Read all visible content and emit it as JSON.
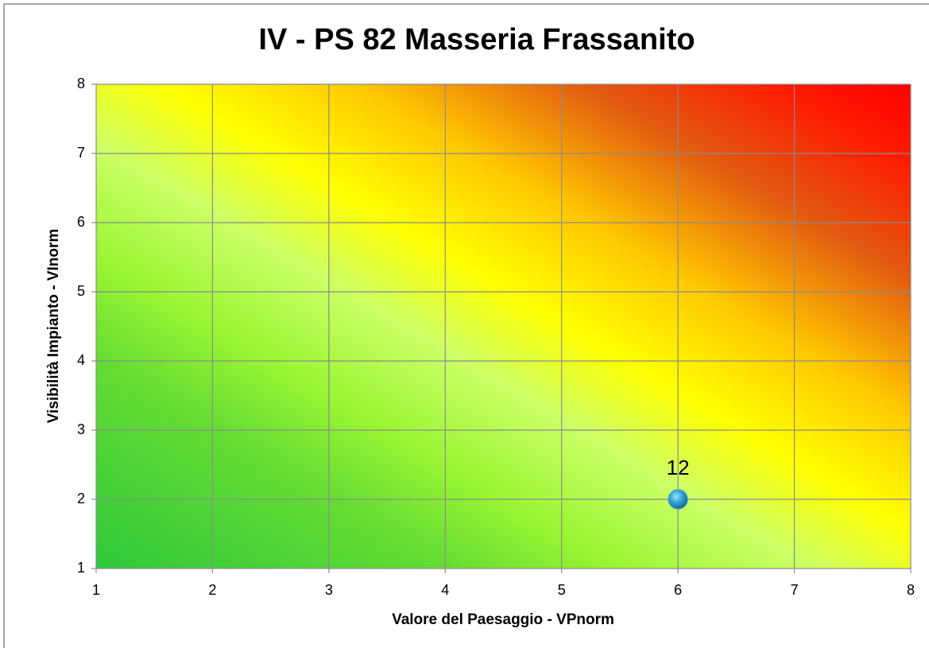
{
  "chart_data": {
    "type": "bubble",
    "title": "IV - PS 82 Masseria Frassanito",
    "x_label": "Valore del Paesaggio - VPnorm",
    "y_label": "Visibilità Impianto - VInorm",
    "x": [
      6
    ],
    "values": [
      2
    ],
    "sizes": [
      12
    ],
    "color": "#2f9fd0",
    "xlim": [
      1,
      8
    ],
    "ylim": [
      1,
      8
    ],
    "xticks": [
      1,
      2,
      3,
      4,
      5,
      6,
      7,
      8
    ],
    "yticks": [
      1,
      2,
      3,
      4,
      5,
      6,
      7,
      8
    ],
    "grid": true
  }
}
